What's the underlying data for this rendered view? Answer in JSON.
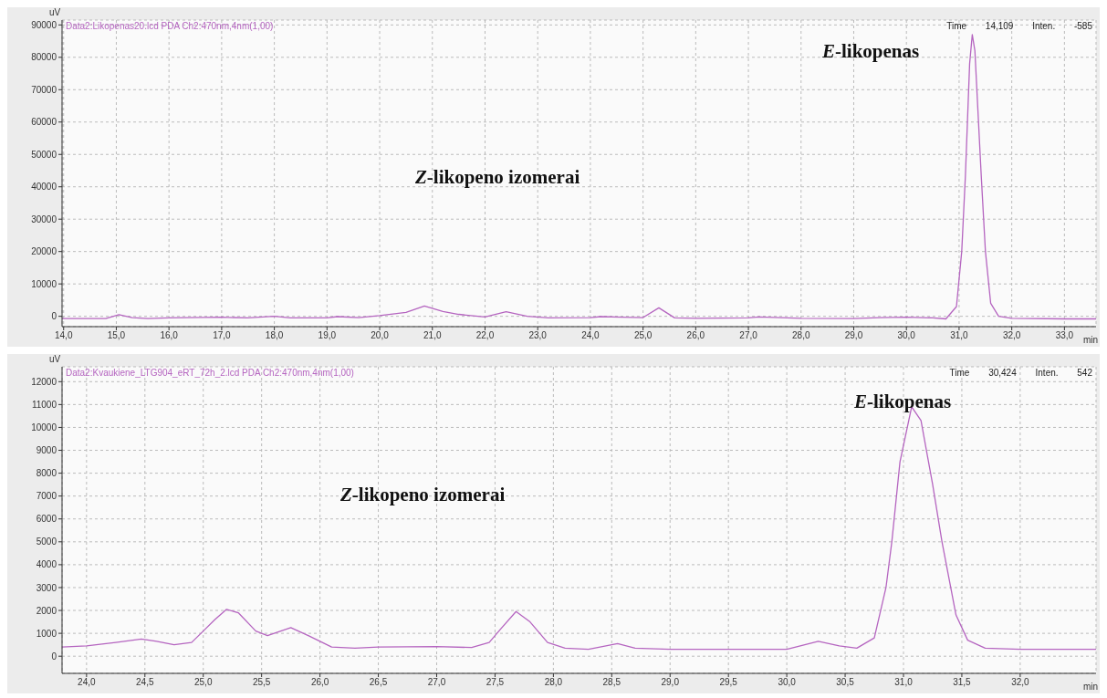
{
  "chart_data": [
    {
      "type": "line",
      "xlabel": "min",
      "ylabel": "uV",
      "grid": true,
      "xlim": [
        13.97,
        33.6
      ],
      "ylim": [
        -3200,
        91500
      ],
      "xticks": [
        {
          "value": 14,
          "label": "14,0"
        },
        {
          "value": 15,
          "label": "15,0"
        },
        {
          "value": 16,
          "label": "16,0"
        },
        {
          "value": 17,
          "label": "17,0"
        },
        {
          "value": 18,
          "label": "18,0"
        },
        {
          "value": 19,
          "label": "19,0"
        },
        {
          "value": 20,
          "label": "20,0"
        },
        {
          "value": 21,
          "label": "21,0"
        },
        {
          "value": 22,
          "label": "22,0"
        },
        {
          "value": 23,
          "label": "23,0"
        },
        {
          "value": 24,
          "label": "24,0"
        },
        {
          "value": 25,
          "label": "25,0"
        },
        {
          "value": 26,
          "label": "26,0"
        },
        {
          "value": 27,
          "label": "27,0"
        },
        {
          "value": 28,
          "label": "28,0"
        },
        {
          "value": 29,
          "label": "29,0"
        },
        {
          "value": 30,
          "label": "30,0"
        },
        {
          "value": 31,
          "label": "31,0"
        },
        {
          "value": 32,
          "label": "32,0"
        },
        {
          "value": 33,
          "label": "33,0"
        }
      ],
      "yticks": [
        0,
        10000,
        20000,
        30000,
        40000,
        50000,
        60000,
        70000,
        80000,
        90000
      ],
      "series": [
        {
          "name": "Data2:Likopenas20.lcd PDA Ch2:470nm,4nm(1,00)",
          "color": "#b565c0",
          "x": [
            13.97,
            14.8,
            15.05,
            15.3,
            15.6,
            16.0,
            17.0,
            17.5,
            18.0,
            18.3,
            19.0,
            19.2,
            19.6,
            20.0,
            20.5,
            20.85,
            21.2,
            21.5,
            22.0,
            22.4,
            22.8,
            23.2,
            24.0,
            24.2,
            24.6,
            25.0,
            25.3,
            25.6,
            26.0,
            27.0,
            27.2,
            28.0,
            29.0,
            29.5,
            30.0,
            30.5,
            30.75,
            30.95,
            31.05,
            31.12,
            31.2,
            31.25,
            31.3,
            31.42,
            31.5,
            31.6,
            31.75,
            32.0,
            33.0,
            33.6
          ],
          "values": [
            -700,
            -700,
            500,
            -400,
            -700,
            -500,
            -300,
            -500,
            0,
            -500,
            -500,
            -100,
            -400,
            200,
            1200,
            3200,
            1500,
            600,
            -200,
            1400,
            0,
            -500,
            -400,
            -100,
            -300,
            -400,
            2600,
            -500,
            -600,
            -500,
            -200,
            -600,
            -700,
            -400,
            -300,
            -500,
            -800,
            3000,
            20000,
            43500,
            78000,
            87000,
            82000,
            43500,
            20000,
            4000,
            0,
            -600,
            -800,
            -800
          ]
        }
      ],
      "annotations": [
        "Z-likopeno izomerai",
        "E-likopenas",
        "Time 14,109 Inten. -585"
      ]
    },
    {
      "type": "line",
      "xlabel": "min",
      "ylabel": "uV",
      "grid": true,
      "xlim": [
        23.79,
        32.65
      ],
      "ylim": [
        -750,
        12650
      ],
      "xticks": [
        {
          "value": 24,
          "label": "24,0"
        },
        {
          "value": 24.5,
          "label": "24,5"
        },
        {
          "value": 25,
          "label": "25,0"
        },
        {
          "value": 25.5,
          "label": "25,5"
        },
        {
          "value": 26,
          "label": "26,0"
        },
        {
          "value": 26.5,
          "label": "26,5"
        },
        {
          "value": 27,
          "label": "27,0"
        },
        {
          "value": 27.5,
          "label": "27,5"
        },
        {
          "value": 28,
          "label": "28,0"
        },
        {
          "value": 28.5,
          "label": "28,5"
        },
        {
          "value": 29,
          "label": "29,0"
        },
        {
          "value": 29.5,
          "label": "29,5"
        },
        {
          "value": 30,
          "label": "30,0"
        },
        {
          "value": 30.5,
          "label": "30,5"
        },
        {
          "value": 31,
          "label": "31,0"
        },
        {
          "value": 31.5,
          "label": "31,5"
        },
        {
          "value": 32,
          "label": "32,0"
        }
      ],
      "yticks": [
        0,
        1000,
        2000,
        3000,
        4000,
        5000,
        6000,
        7000,
        8000,
        9000,
        10000,
        11000,
        12000
      ],
      "series": [
        {
          "name": "Data2:Kvaukiene_LTG904_eRT_72h_2.lcd PDA Ch2:470nm,4nm(1,00)",
          "color": "#b565c0",
          "x": [
            23.79,
            24.0,
            24.25,
            24.47,
            24.6,
            24.75,
            24.9,
            25.0,
            25.1,
            25.2,
            25.3,
            25.45,
            25.55,
            25.75,
            25.9,
            26.1,
            26.3,
            26.5,
            27.0,
            27.3,
            27.45,
            27.55,
            27.68,
            27.8,
            27.95,
            28.1,
            28.3,
            28.55,
            28.7,
            29.0,
            29.5,
            30.0,
            30.27,
            30.45,
            30.6,
            30.75,
            30.85,
            30.9,
            30.97,
            31.07,
            31.15,
            31.25,
            31.33,
            31.45,
            31.55,
            31.7,
            32.0,
            32.65
          ],
          "values": [
            400,
            450,
            600,
            750,
            650,
            500,
            600,
            1100,
            1600,
            2050,
            1900,
            1100,
            900,
            1250,
            900,
            400,
            350,
            400,
            420,
            380,
            600,
            1200,
            1950,
            1500,
            600,
            350,
            300,
            550,
            350,
            300,
            300,
            300,
            650,
            450,
            350,
            800,
            3000,
            5000,
            8500,
            10900,
            10300,
            7500,
            5000,
            1800,
            700,
            350,
            300,
            300
          ]
        }
      ],
      "annotations": [
        "Z-likopeno izomerai",
        "E-likopenas",
        "Time 30,424 Inten. 542"
      ]
    }
  ]
}
